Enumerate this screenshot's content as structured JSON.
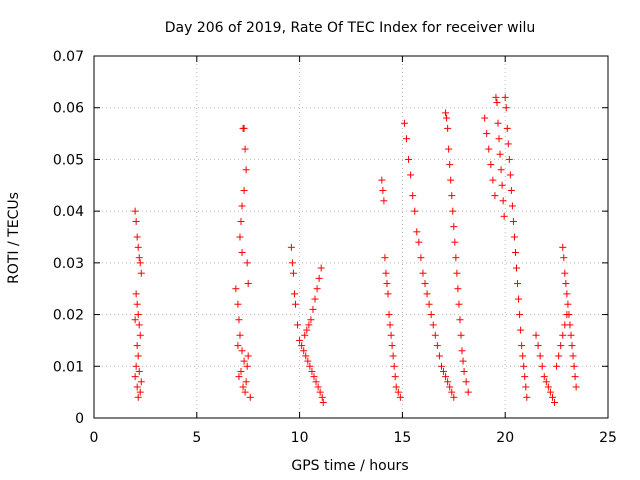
{
  "chart_data": {
    "type": "scatter",
    "title": "Day 206 of 2019, Rate Of TEC Index for receiver wilu",
    "xlabel": "GPS time / hours",
    "ylabel": "ROTI / TECUs",
    "xlim": [
      0,
      25
    ],
    "ylim": [
      0,
      0.07
    ],
    "x_ticks": [
      0,
      5,
      10,
      15,
      20,
      25
    ],
    "y_ticks": [
      0,
      0.01,
      0.02,
      0.03,
      0.04,
      0.05,
      0.06,
      0.07
    ],
    "x_tick_labels": [
      "0",
      "5",
      "10",
      "15",
      "20",
      "25"
    ],
    "y_tick_labels": [
      "0",
      "0.01",
      "0.02",
      "0.03",
      "0.04",
      "0.05",
      "0.06",
      "0.07"
    ],
    "grid": true,
    "marker": "+",
    "marker_color": "#ff0000",
    "series": [
      {
        "points": [
          [
            2.0,
            0.04
          ],
          [
            2.05,
            0.038
          ],
          [
            2.1,
            0.035
          ],
          [
            2.15,
            0.033
          ],
          [
            2.2,
            0.031
          ],
          [
            2.25,
            0.03
          ],
          [
            2.3,
            0.028
          ],
          [
            2.05,
            0.024
          ],
          [
            2.1,
            0.022
          ],
          [
            2.15,
            0.02
          ],
          [
            2.0,
            0.019
          ],
          [
            2.2,
            0.018
          ],
          [
            2.25,
            0.016
          ],
          [
            2.1,
            0.014
          ],
          [
            2.15,
            0.012
          ],
          [
            2.05,
            0.01
          ],
          [
            2.2,
            0.009
          ],
          [
            2.0,
            0.008
          ],
          [
            2.3,
            0.007
          ],
          [
            2.1,
            0.006
          ],
          [
            2.25,
            0.005
          ],
          [
            2.15,
            0.004
          ],
          [
            6.9,
            0.025
          ],
          [
            7.0,
            0.022
          ],
          [
            7.05,
            0.019
          ],
          [
            7.1,
            0.035
          ],
          [
            7.15,
            0.038
          ],
          [
            7.2,
            0.032
          ],
          [
            7.25,
            0.056
          ],
          [
            7.3,
            0.056
          ],
          [
            7.35,
            0.052
          ],
          [
            7.4,
            0.048
          ],
          [
            7.3,
            0.044
          ],
          [
            7.2,
            0.041
          ],
          [
            7.45,
            0.03
          ],
          [
            7.5,
            0.026
          ],
          [
            7.1,
            0.016
          ],
          [
            7.0,
            0.014
          ],
          [
            7.2,
            0.013
          ],
          [
            7.3,
            0.011
          ],
          [
            7.15,
            0.009
          ],
          [
            7.05,
            0.008
          ],
          [
            7.25,
            0.006
          ],
          [
            7.35,
            0.005
          ],
          [
            7.4,
            0.007
          ],
          [
            7.45,
            0.01
          ],
          [
            7.5,
            0.012
          ],
          [
            7.6,
            0.004
          ],
          [
            9.6,
            0.033
          ],
          [
            9.65,
            0.03
          ],
          [
            9.7,
            0.028
          ],
          [
            9.75,
            0.024
          ],
          [
            9.8,
            0.022
          ],
          [
            9.9,
            0.018
          ],
          [
            10.0,
            0.015
          ],
          [
            10.1,
            0.014
          ],
          [
            10.2,
            0.013
          ],
          [
            10.3,
            0.012
          ],
          [
            10.4,
            0.011
          ],
          [
            10.5,
            0.01
          ],
          [
            10.6,
            0.009
          ],
          [
            10.7,
            0.008
          ],
          [
            10.8,
            0.007
          ],
          [
            10.9,
            0.006
          ],
          [
            11.0,
            0.005
          ],
          [
            11.1,
            0.004
          ],
          [
            11.15,
            0.003
          ],
          [
            10.35,
            0.017
          ],
          [
            10.55,
            0.019
          ],
          [
            10.65,
            0.021
          ],
          [
            10.75,
            0.023
          ],
          [
            10.85,
            0.025
          ],
          [
            10.95,
            0.027
          ],
          [
            11.05,
            0.029
          ],
          [
            10.25,
            0.016
          ],
          [
            10.45,
            0.018
          ],
          [
            14.0,
            0.046
          ],
          [
            14.05,
            0.044
          ],
          [
            14.1,
            0.042
          ],
          [
            14.15,
            0.031
          ],
          [
            14.2,
            0.028
          ],
          [
            14.25,
            0.026
          ],
          [
            14.3,
            0.024
          ],
          [
            14.35,
            0.02
          ],
          [
            14.4,
            0.018
          ],
          [
            14.45,
            0.016
          ],
          [
            14.5,
            0.014
          ],
          [
            14.55,
            0.012
          ],
          [
            14.6,
            0.01
          ],
          [
            14.65,
            0.008
          ],
          [
            14.7,
            0.006
          ],
          [
            14.8,
            0.005
          ],
          [
            14.9,
            0.004
          ],
          [
            15.1,
            0.057
          ],
          [
            15.2,
            0.054
          ],
          [
            15.3,
            0.05
          ],
          [
            15.4,
            0.047
          ],
          [
            15.5,
            0.043
          ],
          [
            15.6,
            0.04
          ],
          [
            15.7,
            0.036
          ],
          [
            15.8,
            0.034
          ],
          [
            15.9,
            0.031
          ],
          [
            16.0,
            0.028
          ],
          [
            16.1,
            0.026
          ],
          [
            16.2,
            0.024
          ],
          [
            16.3,
            0.022
          ],
          [
            16.4,
            0.02
          ],
          [
            16.5,
            0.018
          ],
          [
            16.6,
            0.016
          ],
          [
            16.7,
            0.014
          ],
          [
            16.8,
            0.012
          ],
          [
            16.9,
            0.01
          ],
          [
            17.0,
            0.009
          ],
          [
            17.1,
            0.008
          ],
          [
            17.2,
            0.007
          ],
          [
            17.3,
            0.006
          ],
          [
            17.4,
            0.005
          ],
          [
            17.5,
            0.004
          ],
          [
            17.1,
            0.059
          ],
          [
            17.15,
            0.058
          ],
          [
            17.2,
            0.056
          ],
          [
            17.25,
            0.052
          ],
          [
            17.3,
            0.049
          ],
          [
            17.35,
            0.046
          ],
          [
            17.4,
            0.043
          ],
          [
            17.45,
            0.04
          ],
          [
            17.5,
            0.037
          ],
          [
            17.55,
            0.034
          ],
          [
            17.6,
            0.031
          ],
          [
            17.65,
            0.028
          ],
          [
            17.7,
            0.025
          ],
          [
            17.75,
            0.022
          ],
          [
            17.8,
            0.019
          ],
          [
            17.85,
            0.016
          ],
          [
            17.9,
            0.013
          ],
          [
            17.95,
            0.011
          ],
          [
            18.0,
            0.009
          ],
          [
            18.1,
            0.007
          ],
          [
            18.2,
            0.005
          ],
          [
            19.0,
            0.058
          ],
          [
            19.1,
            0.055
          ],
          [
            19.2,
            0.052
          ],
          [
            19.3,
            0.049
          ],
          [
            19.4,
            0.046
          ],
          [
            19.5,
            0.043
          ],
          [
            19.55,
            0.062
          ],
          [
            19.6,
            0.061
          ],
          [
            19.65,
            0.057
          ],
          [
            19.7,
            0.054
          ],
          [
            19.75,
            0.051
          ],
          [
            19.8,
            0.048
          ],
          [
            19.85,
            0.045
          ],
          [
            19.9,
            0.042
          ],
          [
            19.95,
            0.039
          ],
          [
            20.0,
            0.062
          ],
          [
            20.05,
            0.06
          ],
          [
            20.1,
            0.056
          ],
          [
            20.15,
            0.053
          ],
          [
            20.2,
            0.05
          ],
          [
            20.25,
            0.047
          ],
          [
            20.3,
            0.044
          ],
          [
            20.35,
            0.041
          ],
          [
            20.4,
            0.038
          ],
          [
            20.45,
            0.035
          ],
          [
            20.5,
            0.032
          ],
          [
            20.55,
            0.029
          ],
          [
            20.6,
            0.026
          ],
          [
            20.65,
            0.023
          ],
          [
            20.7,
            0.02
          ],
          [
            20.75,
            0.017
          ],
          [
            20.8,
            0.014
          ],
          [
            20.85,
            0.012
          ],
          [
            20.9,
            0.01
          ],
          [
            20.95,
            0.008
          ],
          [
            21.0,
            0.006
          ],
          [
            21.05,
            0.004
          ],
          [
            21.5,
            0.016
          ],
          [
            21.6,
            0.014
          ],
          [
            21.7,
            0.012
          ],
          [
            21.8,
            0.01
          ],
          [
            21.9,
            0.008
          ],
          [
            22.0,
            0.007
          ],
          [
            22.1,
            0.006
          ],
          [
            22.2,
            0.005
          ],
          [
            22.3,
            0.004
          ],
          [
            22.4,
            0.003
          ],
          [
            22.5,
            0.01
          ],
          [
            22.6,
            0.012
          ],
          [
            22.7,
            0.014
          ],
          [
            22.8,
            0.016
          ],
          [
            22.9,
            0.018
          ],
          [
            23.0,
            0.02
          ],
          [
            22.8,
            0.033
          ],
          [
            22.85,
            0.031
          ],
          [
            22.9,
            0.028
          ],
          [
            22.95,
            0.026
          ],
          [
            23.0,
            0.024
          ],
          [
            23.05,
            0.022
          ],
          [
            23.1,
            0.02
          ],
          [
            23.15,
            0.018
          ],
          [
            23.2,
            0.016
          ],
          [
            23.25,
            0.014
          ],
          [
            23.3,
            0.012
          ],
          [
            23.35,
            0.01
          ],
          [
            23.4,
            0.008
          ],
          [
            23.45,
            0.006
          ]
        ]
      }
    ]
  }
}
